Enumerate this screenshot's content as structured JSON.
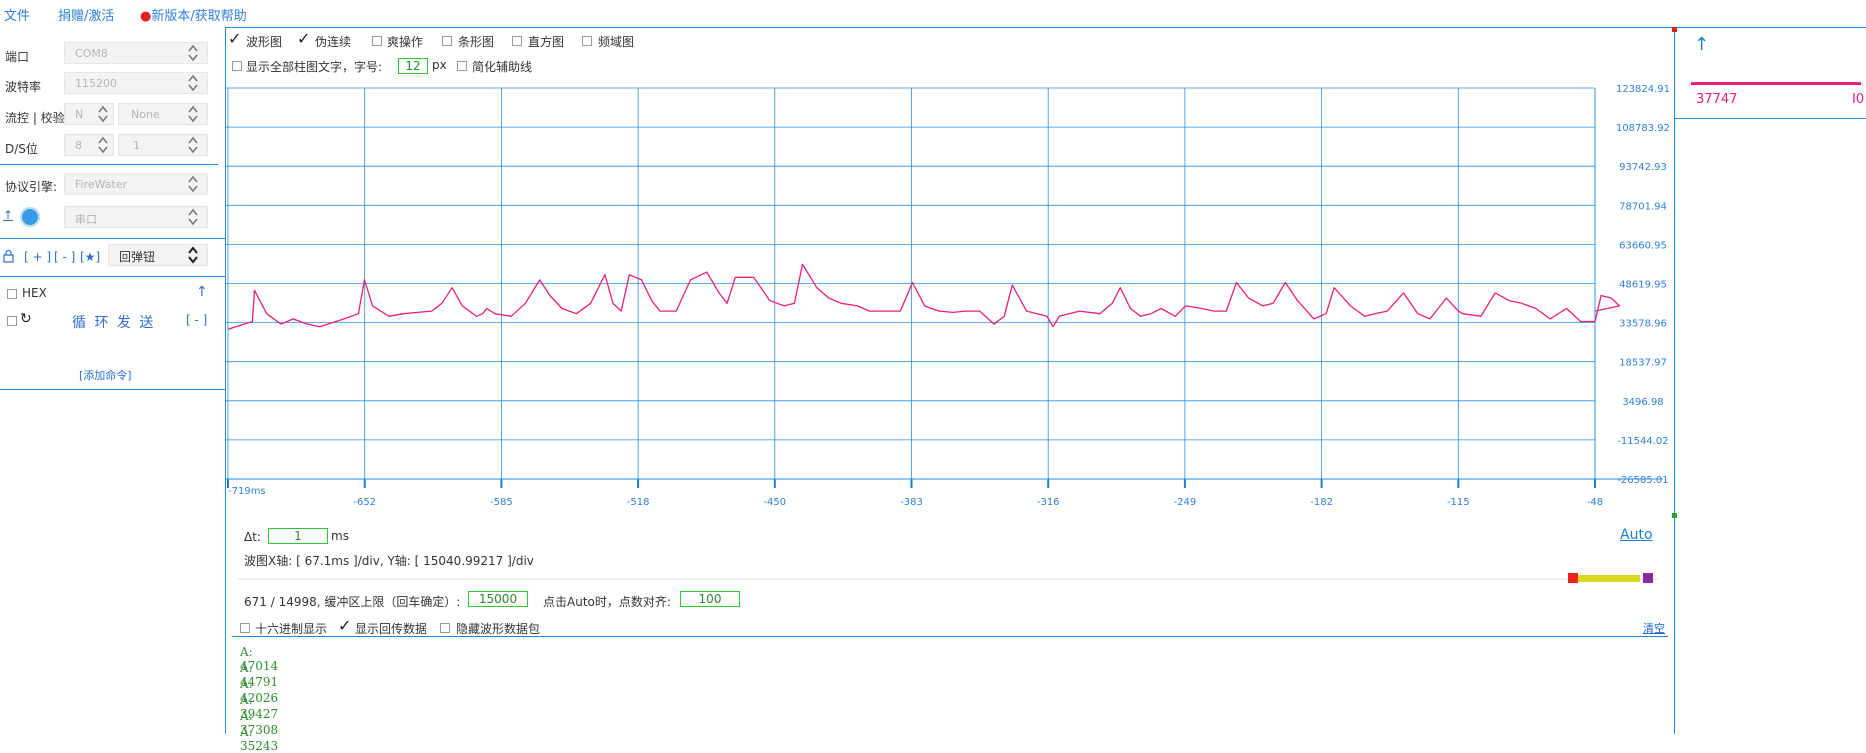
{
  "menu": {
    "file": "文件",
    "donate": "捐赠/激活",
    "help": "新版本/获取帮助",
    "help_dot": "●"
  },
  "left": {
    "port": {
      "label": "端口",
      "value": "COM8"
    },
    "baud": {
      "label": "波特率",
      "value": "115200"
    },
    "flow": {
      "label": "流控 | 校验",
      "value1": "N",
      "value2": "None"
    },
    "ds": {
      "label": "D/S位",
      "value1": "8",
      "value2": "1"
    },
    "engine": {
      "label": "协议引擎:",
      "value": "FireWater"
    },
    "serial": {
      "arrow": "↑",
      "value": "串口"
    },
    "cmd_bar": {
      "add": "[ + ]",
      "remove": "[ - ]",
      "star": "[★]",
      "mode": "回弹钮"
    },
    "hex": {
      "label": "HEX",
      "arrow": "↑"
    },
    "loop": {
      "icon": "↻",
      "label": "循 环 发 送",
      "remove": "[ - ]"
    },
    "add_cmd": "[添加命令]"
  },
  "toolbar": {
    "waveform": "波形图",
    "pseudo": "伪连续",
    "cool_op": "爽操作",
    "bar": "条形图",
    "hist": "直方图",
    "freq": "频域图",
    "show_all_text": "显示全部柱图文字，字号:",
    "font_size": "12",
    "px": "px",
    "simplify": "简化辅助线"
  },
  "chart_data": {
    "type": "line",
    "y_ticks": [
      "123824.91",
      "108783.92",
      "93742.93",
      "78701.94",
      "63660.95",
      "48619.95",
      "33578.96",
      "18537.97",
      "3496.98",
      "-11544.02",
      "-26585.01"
    ],
    "x_ticks": [
      "-719ms",
      "-652",
      "-585",
      "-518",
      "-450",
      "-383",
      "-316",
      "-249",
      "-182",
      "-115",
      "-48"
    ],
    "ylim": [
      -26585.01,
      123824.91
    ],
    "xlim": [
      -719,
      -48
    ],
    "series": [
      {
        "color": "#e8207a",
        "x": [
          -719,
          -707,
          -706,
          -700,
          -693,
          -687,
          -680,
          -674,
          -662,
          -655,
          -652,
          -648,
          -640,
          -633,
          -626,
          -619,
          -614,
          -609,
          -604,
          -597,
          -594,
          -592,
          -588,
          -580,
          -573,
          -566,
          -561,
          -555,
          -548,
          -541,
          -534,
          -530,
          -526,
          -522,
          -516,
          -511,
          -507,
          -499,
          -492,
          -484,
          -478,
          -474,
          -470,
          -461,
          -453,
          -446,
          -441,
          -437,
          -430,
          -424,
          -418,
          -410,
          -404,
          -396,
          -389,
          -383,
          -377,
          -370,
          -363,
          -357,
          -350,
          -343,
          -338,
          -334,
          -327,
          -317,
          -314,
          -311,
          -301,
          -291,
          -285,
          -281,
          -276,
          -271,
          -266,
          -261,
          -254,
          -249,
          -241,
          -235,
          -229,
          -224,
          -218,
          -211,
          -206,
          -200,
          -194,
          -186,
          -180,
          -176,
          -168,
          -161,
          -156,
          -150,
          -142,
          -135,
          -129,
          -121,
          -115,
          -113,
          -104,
          -97,
          -90,
          -84,
          -77,
          -70,
          -62,
          -55,
          -50,
          -48,
          -45,
          -40,
          -36,
          -48
        ],
        "y": [
          31000,
          34000,
          46000,
          37000,
          33000,
          35000,
          33000,
          32000,
          35000,
          37000,
          50000,
          40000,
          36000,
          37000,
          37500,
          38000,
          41000,
          47000,
          40000,
          36000,
          37000,
          39000,
          37000,
          36000,
          41000,
          50000,
          44000,
          39000,
          37000,
          41000,
          52000,
          41000,
          38000,
          52000,
          50000,
          42000,
          38000,
          38000,
          50000,
          53000,
          45000,
          41000,
          51000,
          51000,
          42000,
          40000,
          41000,
          56000,
          47000,
          43000,
          41000,
          40000,
          38000,
          38000,
          38000,
          49000,
          40000,
          38000,
          37500,
          38000,
          38000,
          33000,
          36000,
          48000,
          38000,
          36000,
          32000,
          36000,
          38000,
          37000,
          41000,
          47000,
          39000,
          36000,
          37000,
          39000,
          36000,
          40000,
          39000,
          38000,
          38000,
          49000,
          43000,
          40000,
          41000,
          49000,
          42000,
          35000,
          37000,
          47000,
          40000,
          36000,
          37000,
          38000,
          45000,
          37000,
          35000,
          43000,
          38000,
          37000,
          36000,
          45000,
          42000,
          41000,
          39000,
          35000,
          39000,
          34000,
          34000,
          34000,
          44000,
          43000,
          40000,
          38000
        ]
      }
    ]
  },
  "controls": {
    "dt_label": "Δt:",
    "dt_value": "1",
    "dt_unit": "ms",
    "auto": "Auto",
    "axis_info": "波图X轴: [ 67.1ms ]/div,  Y轴: [ 15040.99217 ]/div",
    "buffer_info": "671 / 14998,  缓冲区上限（回车确定）:",
    "buffer_value": "15000",
    "auto_align": "点击Auto时，点数对齐:",
    "auto_align_value": "100",
    "hex_display": "十六进制显示",
    "show_echo": "显示回传数据",
    "hide_packets": "隐藏波形数据包",
    "clear": "清空"
  },
  "log": [
    "A: 47014",
    "A: 44791",
    "A: 42026",
    "A: 39427",
    "A: 37308",
    "A: 35243"
  ],
  "right": {
    "arrow": "↑",
    "value": "37747",
    "id": "I0",
    "series_color": "#e8207a"
  }
}
